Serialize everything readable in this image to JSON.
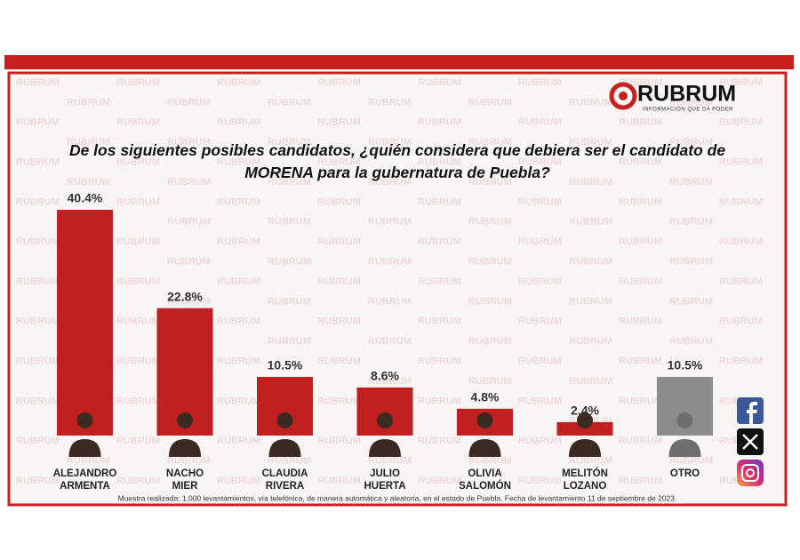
{
  "chart_data": {
    "type": "bar",
    "brand": "RUBRUM",
    "tagline": "INFORMACIÓN QUE DA PODER",
    "title": "De los siguientes posibles candidatos, ¿quién considera que debiera ser  el candidato de MORENA para la gubernatura de Puebla?",
    "categories": [
      "ALEJANDRO ARMENTA",
      "NACHO MIER",
      "CLAUDIA RIVERA",
      "JULIO HUERTA",
      "OLIVIA SALOMÓN",
      "MELITÓN LOZANO",
      "OTRO"
    ],
    "values": [
      40.4,
      22.8,
      10.5,
      8.6,
      4.8,
      2.4,
      10.5
    ],
    "value_labels": [
      "40.4%",
      "22.8%",
      "10.5%",
      "8.6%",
      "4.8%",
      "2.4%",
      "10.5%"
    ],
    "colors": [
      "#c0201f",
      "#c0201f",
      "#c0201f",
      "#c0201f",
      "#c0201f",
      "#c0201f",
      "#8c8c8c"
    ],
    "footnote": "Muestra realizada: 1,000 levantamientos, vía telefónica, de manera automática y aleatoria, en el estado de Puebla. Fecha de levantamiento 11 de septiembre de 2023."
  }
}
